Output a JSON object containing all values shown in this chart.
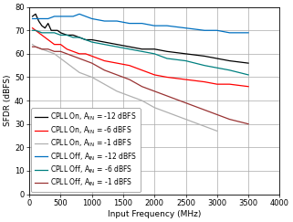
{
  "xlabel": "Input Frequency (MHz)",
  "ylabel": "SFDR (dBFS)",
  "xlim": [
    0,
    4000
  ],
  "ylim": [
    0,
    80
  ],
  "yticks": [
    0,
    10,
    20,
    30,
    40,
    50,
    60,
    70,
    80
  ],
  "xticks": [
    0,
    500,
    1000,
    1500,
    2000,
    2500,
    3000,
    3500,
    4000
  ],
  "series": [
    {
      "label": "CPLL On, A_IN = -12 dBFS",
      "color": "#000000",
      "linewidth": 0.9,
      "x": [
        50,
        100,
        150,
        200,
        250,
        300,
        350,
        400,
        450,
        500,
        600,
        700,
        800,
        900,
        1000,
        1200,
        1400,
        1600,
        1800,
        2000,
        2200,
        2500,
        2800,
        3000,
        3200,
        3500
      ],
      "y": [
        76,
        77,
        74,
        72,
        71,
        73,
        70,
        70,
        70,
        69,
        68,
        68,
        67,
        66,
        66,
        65,
        64,
        63,
        62,
        62,
        61,
        60,
        59,
        58,
        57,
        56
      ]
    },
    {
      "label": "CPLL On, A_IN = -6 dBFS",
      "color": "#ff0000",
      "linewidth": 0.9,
      "x": [
        50,
        100,
        200,
        300,
        400,
        500,
        600,
        700,
        800,
        900,
        1000,
        1200,
        1400,
        1600,
        1800,
        2000,
        2200,
        2500,
        2800,
        3000,
        3200,
        3500
      ],
      "y": [
        71,
        70,
        68,
        66,
        64,
        64,
        62,
        61,
        60,
        60,
        59,
        57,
        56,
        55,
        53,
        51,
        50,
        49,
        48,
        47,
        47,
        46
      ]
    },
    {
      "label": "CPLL On, A_IN = -1 dBFS",
      "color": "#b0b0b0",
      "linewidth": 0.9,
      "x": [
        50,
        100,
        200,
        300,
        400,
        500,
        600,
        700,
        800,
        900,
        1000,
        1200,
        1400,
        1600,
        1800,
        2000,
        2200,
        2500,
        2800,
        3000
      ],
      "y": [
        64,
        63,
        62,
        61,
        60,
        58,
        56,
        54,
        52,
        51,
        50,
        47,
        44,
        42,
        40,
        37,
        35,
        32,
        29,
        27
      ]
    },
    {
      "label": "CPLL Off, A_IN = -12 dBFS",
      "color": "#0070c0",
      "linewidth": 0.9,
      "x": [
        50,
        100,
        200,
        300,
        400,
        500,
        600,
        700,
        800,
        900,
        1000,
        1200,
        1400,
        1600,
        1800,
        2000,
        2200,
        2500,
        2800,
        3000,
        3200,
        3500
      ],
      "y": [
        75,
        75,
        75,
        75,
        76,
        76,
        76,
        76,
        77,
        76,
        75,
        74,
        74,
        73,
        73,
        72,
        72,
        71,
        70,
        70,
        69,
        69
      ]
    },
    {
      "label": "CPLL Off, A_IN = -6 dBFS",
      "color": "#008080",
      "linewidth": 0.9,
      "x": [
        50,
        100,
        200,
        300,
        400,
        500,
        600,
        700,
        800,
        900,
        1000,
        1200,
        1400,
        1600,
        1800,
        2000,
        2200,
        2500,
        2800,
        3000,
        3200,
        3500
      ],
      "y": [
        70,
        70,
        69,
        69,
        69,
        68,
        68,
        67,
        67,
        66,
        65,
        64,
        63,
        62,
        61,
        60,
        58,
        57,
        55,
        54,
        53,
        51
      ]
    },
    {
      "label": "CPLL Off, A_IN = -1 dBFS",
      "color": "#993333",
      "linewidth": 0.9,
      "x": [
        50,
        100,
        200,
        300,
        400,
        500,
        600,
        700,
        800,
        900,
        1000,
        1200,
        1400,
        1600,
        1800,
        2000,
        2200,
        2500,
        2800,
        3000,
        3200,
        3500
      ],
      "y": [
        63,
        63,
        62,
        62,
        61,
        61,
        60,
        59,
        58,
        57,
        56,
        53,
        51,
        49,
        46,
        44,
        42,
        39,
        36,
        34,
        32,
        30
      ]
    }
  ],
  "legend_entries": [
    {
      "text_main": "CPLL On, A",
      "text_sub": "IN",
      "text_rest": " = -12 dBFS",
      "color": "#000000"
    },
    {
      "text_main": "CPLL On, A",
      "text_sub": "IN",
      "text_rest": " = -6 dBFS",
      "color": "#ff0000"
    },
    {
      "text_main": "CPLL On, A",
      "text_sub": "IN",
      "text_rest": " = -1 dBFS",
      "color": "#b0b0b0"
    },
    {
      "text_main": "CPLL Off, A",
      "text_sub": "IN",
      "text_rest": " = -12 dBFS",
      "color": "#0070c0"
    },
    {
      "text_main": "CPLL Off, A",
      "text_sub": "IN",
      "text_rest": " = -6 dBFS",
      "color": "#008080"
    },
    {
      "text_main": "CPLL Off, A",
      "text_sub": "IN",
      "text_rest": " = -1 dBFS",
      "color": "#993333"
    }
  ],
  "background_color": "#ffffff",
  "grid_color": "#aaaaaa",
  "fontsize_labels": 6.5,
  "fontsize_ticks": 6,
  "fontsize_legend": 5.5
}
